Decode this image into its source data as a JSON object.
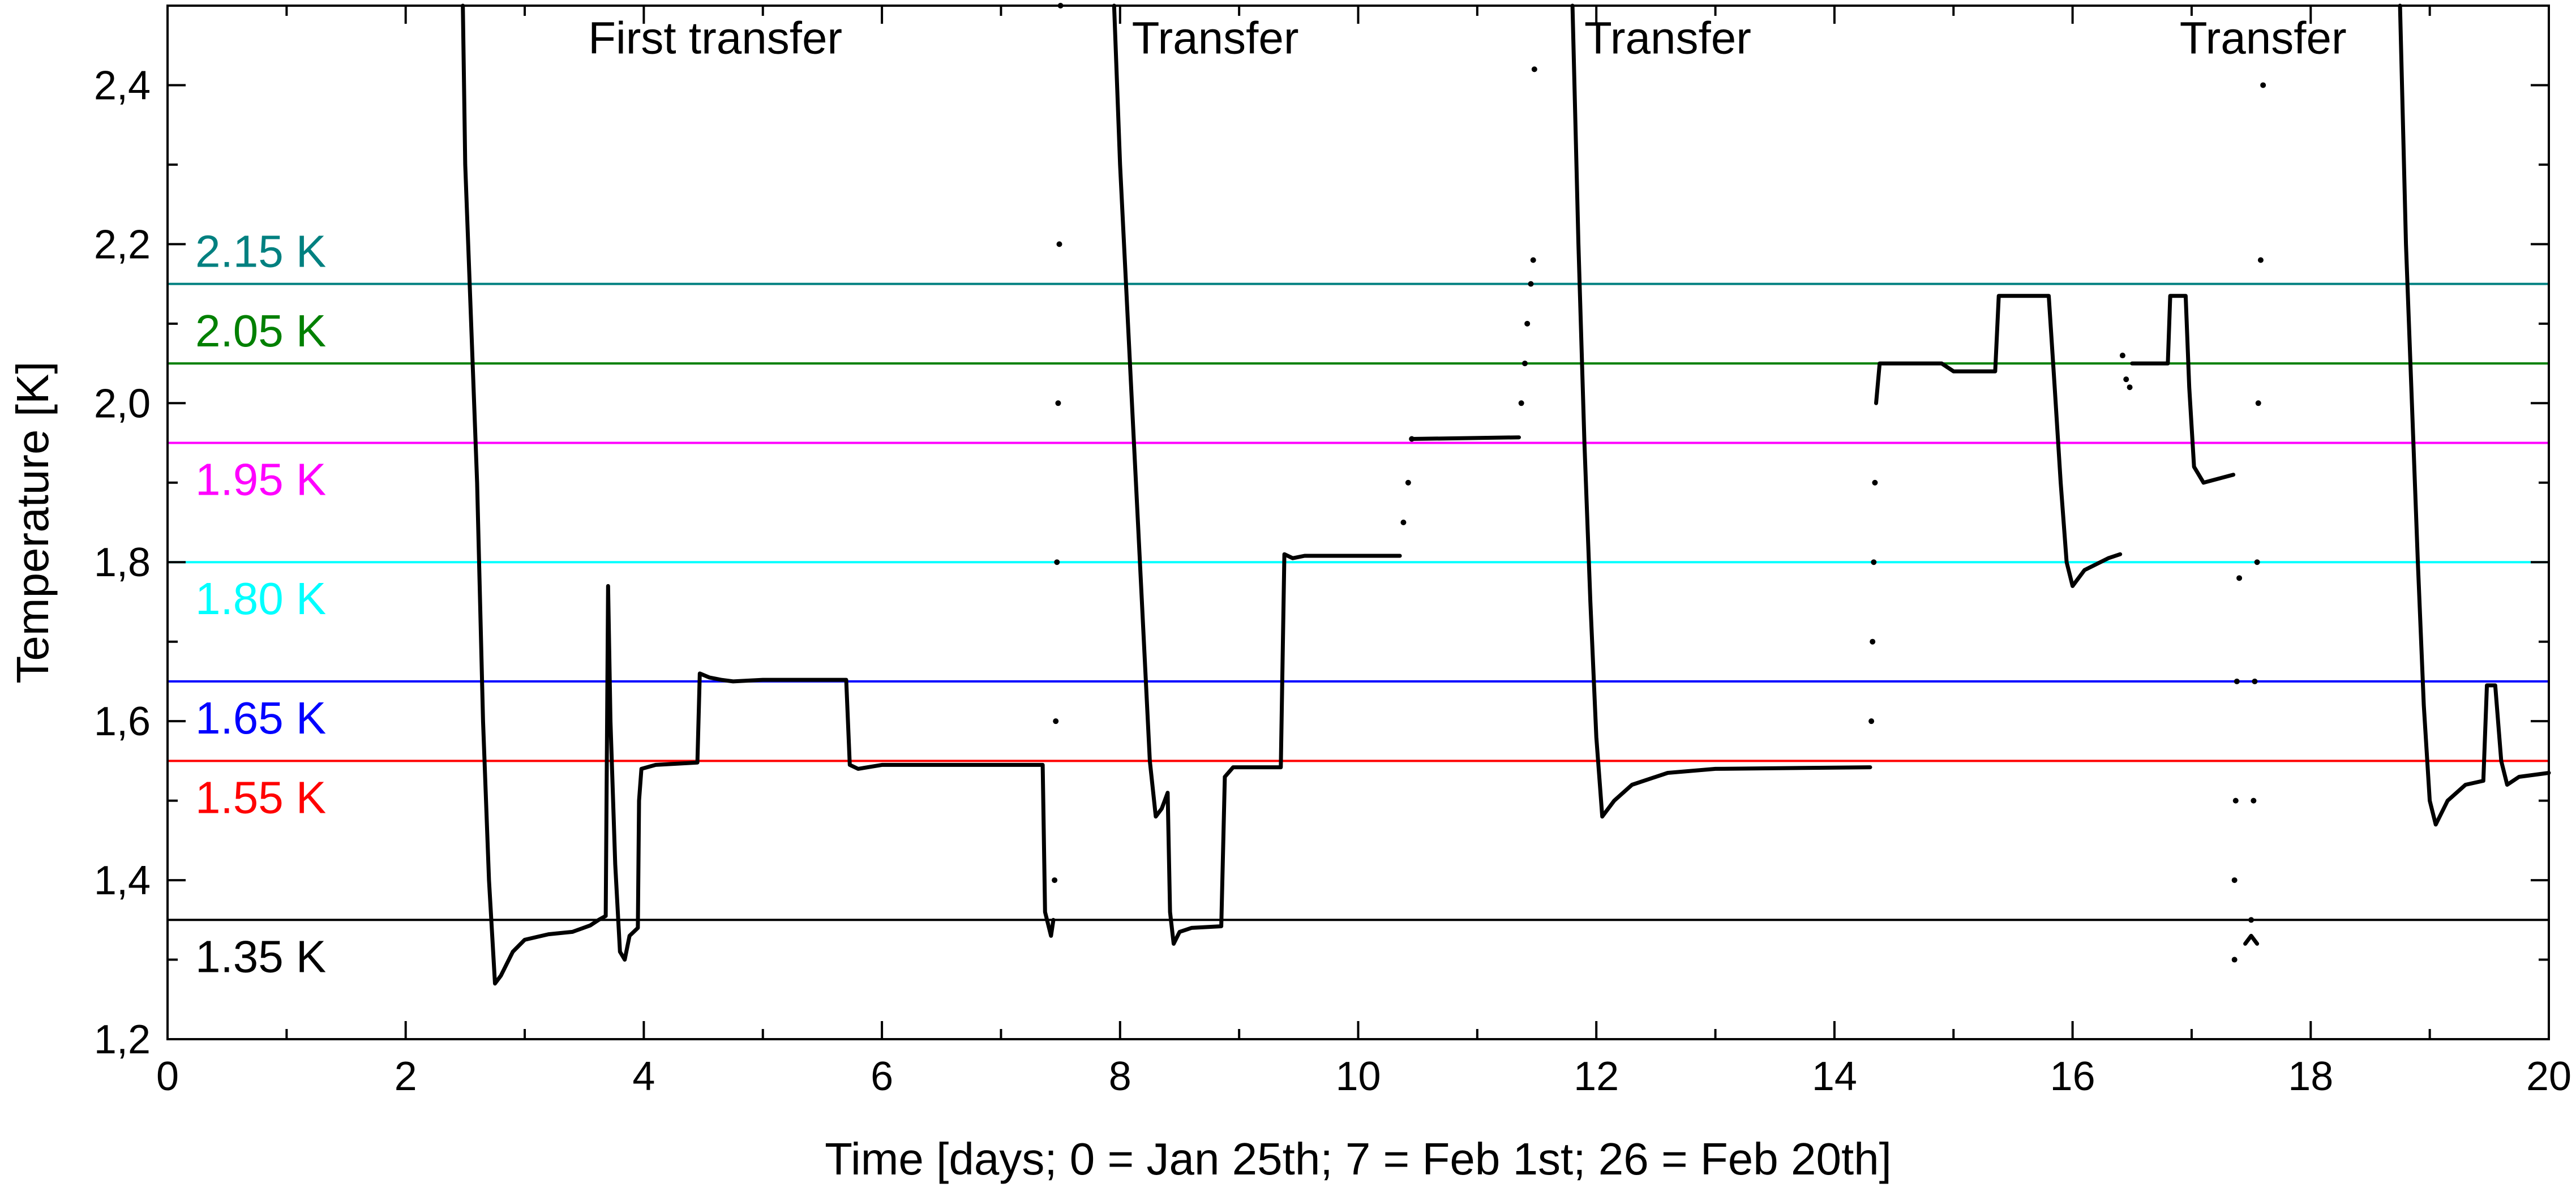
{
  "chart_data": {
    "type": "line",
    "xlabel": "Time [days; 0 = Jan 25th; 7 = Feb 1st; 26 = Feb 20th]",
    "ylabel": "Temperature [K]",
    "xlim": [
      0,
      20
    ],
    "ylim": [
      1.2,
      2.5
    ],
    "x_ticks": [
      0,
      2,
      4,
      6,
      8,
      10,
      12,
      14,
      16,
      18,
      20
    ],
    "x_tick_labels": [
      "0",
      "2",
      "4",
      "6",
      "8",
      "10",
      "12",
      "14",
      "16",
      "18",
      "20"
    ],
    "y_ticks": [
      1.2,
      1.4,
      1.6,
      1.8,
      2.0,
      2.2,
      2.4
    ],
    "y_tick_labels": [
      "1,2",
      "1,4",
      "1,6",
      "1,8",
      "2,0",
      "2,2",
      "2,4"
    ],
    "grid": false,
    "reference_lines": [
      {
        "value": 2.15,
        "label": "2.15 K",
        "color": "#008080"
      },
      {
        "value": 2.05,
        "label": "2.05 K",
        "color": "#008000"
      },
      {
        "value": 1.95,
        "label": "1.95 K",
        "color": "#ff00ff"
      },
      {
        "value": 1.8,
        "label": "1.80 K",
        "color": "#00ffff"
      },
      {
        "value": 1.65,
        "label": "1.65 K",
        "color": "#0000ff"
      },
      {
        "value": 1.55,
        "label": "1.55 K",
        "color": "#ff0000"
      },
      {
        "value": 1.35,
        "label": "1.35 K",
        "color": "#000000"
      }
    ],
    "annotations": [
      {
        "text": "First transfer",
        "x": 4.6,
        "y": 2.44
      },
      {
        "text": "Transfer",
        "x": 8.8,
        "y": 2.44
      },
      {
        "text": "Transfer",
        "x": 12.6,
        "y": 2.44
      },
      {
        "text": "Transfer",
        "x": 17.6,
        "y": 2.44
      }
    ],
    "series": [
      {
        "segments": [
          {
            "style": "line",
            "points": [
              [
                2.48,
                2.5
              ],
              [
                2.5,
                2.3
              ],
              [
                2.55,
                2.1
              ],
              [
                2.6,
                1.9
              ],
              [
                2.65,
                1.6
              ],
              [
                2.7,
                1.4
              ],
              [
                2.75,
                1.27
              ],
              [
                2.8,
                1.28
              ],
              [
                2.9,
                1.31
              ],
              [
                3.0,
                1.325
              ],
              [
                3.2,
                1.332
              ],
              [
                3.4,
                1.335
              ],
              [
                3.55,
                1.343
              ],
              [
                3.62,
                1.35
              ],
              [
                3.68,
                1.355
              ],
              [
                3.7,
                1.77
              ],
              [
                3.72,
                1.6
              ],
              [
                3.76,
                1.42
              ],
              [
                3.8,
                1.31
              ],
              [
                3.84,
                1.3
              ],
              [
                3.88,
                1.33
              ],
              [
                3.95,
                1.34
              ],
              [
                3.96,
                1.5
              ],
              [
                3.98,
                1.54
              ],
              [
                4.1,
                1.545
              ],
              [
                4.45,
                1.548
              ],
              [
                4.47,
                1.66
              ],
              [
                4.55,
                1.655
              ],
              [
                4.65,
                1.652
              ],
              [
                4.75,
                1.65
              ],
              [
                5.0,
                1.652
              ],
              [
                5.7,
                1.652
              ],
              [
                5.73,
                1.545
              ],
              [
                5.8,
                1.54
              ],
              [
                6.0,
                1.545
              ],
              [
                7.35,
                1.545
              ],
              [
                7.37,
                1.36
              ],
              [
                7.42,
                1.33
              ],
              [
                7.44,
                1.35
              ]
            ]
          },
          {
            "style": "dots",
            "points": [
              [
                7.45,
                1.4
              ],
              [
                7.46,
                1.6
              ],
              [
                7.47,
                1.8
              ],
              [
                7.48,
                2.0
              ],
              [
                7.49,
                2.2
              ],
              [
                7.5,
                2.5
              ]
            ]
          },
          {
            "style": "line",
            "points": [
              [
                7.95,
                2.5
              ],
              [
                8.0,
                2.3
              ],
              [
                8.05,
                2.15
              ],
              [
                8.1,
                2.0
              ],
              [
                8.15,
                1.85
              ],
              [
                8.2,
                1.7
              ],
              [
                8.25,
                1.55
              ],
              [
                8.3,
                1.48
              ],
              [
                8.35,
                1.49
              ],
              [
                8.4,
                1.51
              ],
              [
                8.42,
                1.36
              ],
              [
                8.45,
                1.32
              ],
              [
                8.5,
                1.335
              ],
              [
                8.6,
                1.34
              ],
              [
                8.85,
                1.342
              ],
              [
                8.88,
                1.53
              ],
              [
                8.95,
                1.542
              ],
              [
                9.35,
                1.542
              ],
              [
                9.38,
                1.81
              ],
              [
                9.45,
                1.805
              ],
              [
                9.55,
                1.808
              ],
              [
                10.35,
                1.808
              ]
            ]
          },
          {
            "style": "dots",
            "points": [
              [
                10.38,
                1.85
              ],
              [
                10.42,
                1.9
              ],
              [
                10.45,
                1.955
              ]
            ]
          },
          {
            "style": "line",
            "points": [
              [
                10.45,
                1.955
              ],
              [
                11.35,
                1.957
              ]
            ]
          },
          {
            "style": "dots",
            "points": [
              [
                11.37,
                2.0
              ],
              [
                11.4,
                2.05
              ],
              [
                11.42,
                2.1
              ],
              [
                11.45,
                2.15
              ],
              [
                11.47,
                2.18
              ],
              [
                11.48,
                2.42
              ]
            ]
          },
          {
            "style": "line",
            "points": [
              [
                11.8,
                2.5
              ],
              [
                11.85,
                2.2
              ],
              [
                11.9,
                1.95
              ],
              [
                11.95,
                1.75
              ],
              [
                12.0,
                1.58
              ],
              [
                12.05,
                1.48
              ],
              [
                12.15,
                1.5
              ],
              [
                12.3,
                1.52
              ],
              [
                12.6,
                1.535
              ],
              [
                13.0,
                1.54
              ],
              [
                14.3,
                1.542
              ]
            ]
          },
          {
            "style": "dots",
            "points": [
              [
                14.31,
                1.6
              ],
              [
                14.32,
                1.7
              ],
              [
                14.33,
                1.8
              ],
              [
                14.34,
                1.9
              ]
            ]
          },
          {
            "style": "line",
            "points": [
              [
                14.35,
                2.0
              ],
              [
                14.38,
                2.05
              ],
              [
                14.9,
                2.05
              ],
              [
                15.0,
                2.04
              ],
              [
                15.35,
                2.04
              ],
              [
                15.38,
                2.135
              ],
              [
                15.8,
                2.135
              ],
              [
                15.85,
                2.02
              ],
              [
                15.9,
                1.9
              ],
              [
                15.95,
                1.8
              ],
              [
                16.0,
                1.77
              ],
              [
                16.1,
                1.79
              ],
              [
                16.3,
                1.805
              ],
              [
                16.4,
                1.81
              ]
            ]
          },
          {
            "style": "dots",
            "points": [
              [
                16.42,
                2.06
              ],
              [
                16.45,
                2.03
              ],
              [
                16.48,
                2.02
              ]
            ]
          },
          {
            "style": "line",
            "points": [
              [
                16.5,
                2.05
              ],
              [
                16.8,
                2.05
              ],
              [
                16.82,
                2.135
              ],
              [
                16.95,
                2.135
              ],
              [
                16.98,
                2.02
              ],
              [
                17.02,
                1.92
              ],
              [
                17.1,
                1.9
              ],
              [
                17.35,
                1.91
              ]
            ]
          },
          {
            "style": "dots",
            "points": [
              [
                17.4,
                1.78
              ],
              [
                17.38,
                1.65
              ],
              [
                17.37,
                1.5
              ],
              [
                17.36,
                1.4
              ],
              [
                17.36,
                1.3
              ],
              [
                17.5,
                1.35
              ],
              [
                17.52,
                1.5
              ],
              [
                17.53,
                1.65
              ],
              [
                17.55,
                1.8
              ],
              [
                17.56,
                2.0
              ],
              [
                17.58,
                2.18
              ],
              [
                17.6,
                2.4
              ]
            ]
          },
          {
            "style": "line",
            "points": [
              [
                17.45,
                1.32
              ],
              [
                17.5,
                1.33
              ],
              [
                17.55,
                1.32
              ]
            ]
          },
          {
            "style": "line",
            "points": [
              [
                18.75,
                2.5
              ],
              [
                18.8,
                2.2
              ],
              [
                18.85,
                2.0
              ],
              [
                18.9,
                1.8
              ],
              [
                18.95,
                1.62
              ],
              [
                19.0,
                1.5
              ],
              [
                19.05,
                1.47
              ],
              [
                19.15,
                1.5
              ],
              [
                19.3,
                1.52
              ],
              [
                19.45,
                1.525
              ],
              [
                19.48,
                1.645
              ],
              [
                19.55,
                1.645
              ],
              [
                19.6,
                1.55
              ],
              [
                19.65,
                1.52
              ],
              [
                19.75,
                1.53
              ],
              [
                20.0,
                1.535
              ]
            ]
          }
        ]
      }
    ]
  }
}
